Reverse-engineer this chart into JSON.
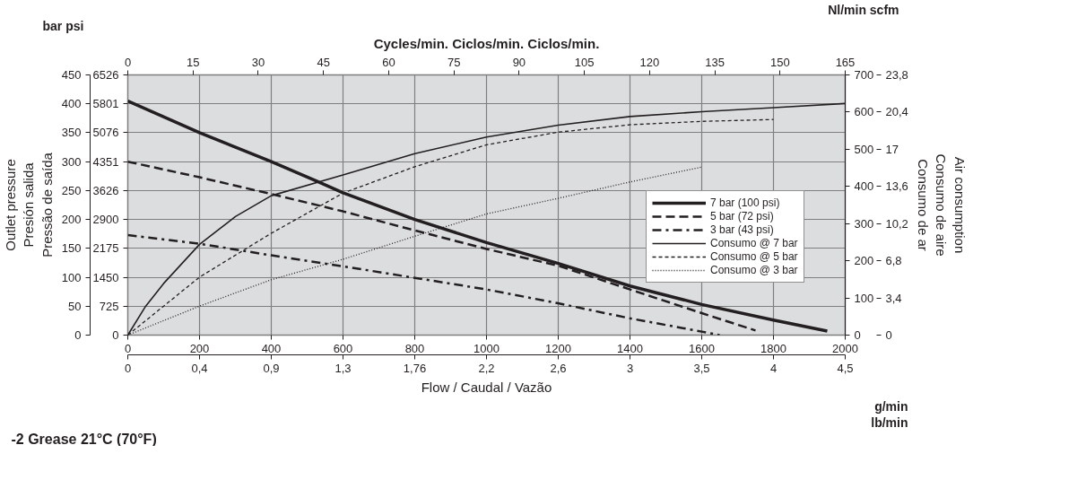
{
  "chart_data": {
    "type": "line",
    "title": "-2 Grease 21°C (70°F)",
    "xlabel": "Flow / Caudal / Vazão",
    "x2label": "Cycles/min. Ciclos/min. Ciclos/min.",
    "ylabel": "Outlet pressure\nPresión salida\nPressão de saída",
    "y2label": "Air consumption\nConsumo de aire\nConsumo de ar",
    "annotations": [
      "bar psi",
      "Nl/min scfm",
      "g/min",
      "lb/min",
      "0",
      "0,4",
      "0,9",
      "1,3",
      "1,76",
      "2,2",
      "2,6",
      "3",
      "3,5",
      "4",
      "4,5",
      "0",
      "3,4",
      "6,8",
      "10,2",
      "13,6",
      "17",
      "20,4",
      "23,8"
    ],
    "xlim": [
      0,
      2000
    ],
    "xticks": [
      0,
      200,
      400,
      600,
      800,
      1000,
      1200,
      1400,
      1600,
      1800,
      2000
    ],
    "x2lim": [
      0,
      165
    ],
    "x2ticks": [
      0,
      15,
      30,
      45,
      60,
      75,
      90,
      105,
      120,
      135,
      150,
      165
    ],
    "ylim": [
      0,
      450
    ],
    "yticks": [
      0,
      50,
      100,
      150,
      200,
      250,
      300,
      350,
      400,
      450
    ],
    "y3lim": [
      0,
      6526
    ],
    "y3ticks": [
      0,
      725,
      1450,
      2175,
      2900,
      3626,
      4351,
      5076,
      5801,
      6526
    ],
    "y2lim": [
      0,
      700
    ],
    "y2ticks": [
      0,
      100,
      200,
      300,
      400,
      500,
      600,
      700
    ],
    "grid": true,
    "legend": "right",
    "series": [
      {
        "name": "7 bar (100 psi)",
        "color": "#231f20",
        "line_style": "solid",
        "x": [
          0,
          200,
          400,
          528,
          600,
          800,
          1000,
          1200,
          1400,
          1600,
          1800,
          1950
        ],
        "values": [
          405,
          350,
          300,
          266,
          246,
          200,
          160,
          124,
          85,
          53,
          26,
          7
        ]
      },
      {
        "name": "5 bar (72 psi)",
        "color": "#231f20",
        "line_style": "dashed",
        "x": [
          0,
          200,
          400,
          600,
          800,
          1000,
          1200,
          1400,
          1600,
          1750
        ],
        "values": [
          300,
          273,
          244,
          214,
          181,
          149,
          120,
          79,
          38,
          8
        ]
      },
      {
        "name": "3 bar (43 psi)",
        "color": "#231f20",
        "line_style": "dashdot",
        "x": [
          0,
          200,
          400,
          600,
          800,
          1000,
          1200,
          1400,
          1600,
          1650
        ],
        "values": [
          173,
          158,
          138,
          119,
          99,
          79,
          55,
          29,
          6,
          0
        ]
      },
      {
        "name": "Consumo @ 7 bar",
        "color": "#231f20",
        "line_style": "solid",
        "axis": "y2",
        "x": [
          0,
          50,
          100,
          200,
          300,
          400,
          600,
          800,
          1000,
          1200,
          1400,
          1600,
          1800,
          2000
        ],
        "values": [
          0,
          78,
          139,
          244,
          319,
          375,
          431,
          488,
          533,
          565,
          588,
          601,
          612,
          623
        ]
      },
      {
        "name": "Consumo @ 5 bar",
        "color": "#231f20",
        "line_style": "dashed",
        "axis": "y2",
        "x": [
          0,
          200,
          400,
          600,
          800,
          1000,
          1200,
          1400,
          1600,
          1800
        ],
        "values": [
          0,
          156,
          274,
          382,
          453,
          512,
          546,
          566,
          575,
          580
        ]
      },
      {
        "name": "Consumo @ 3 bar",
        "color": "#231f20",
        "line_style": "dotted",
        "axis": "y2",
        "x": [
          0,
          200,
          400,
          600,
          800,
          1000,
          1200,
          1400,
          1600
        ],
        "values": [
          0,
          78,
          149,
          204,
          266,
          326,
          368,
          412,
          452
        ]
      }
    ]
  }
}
